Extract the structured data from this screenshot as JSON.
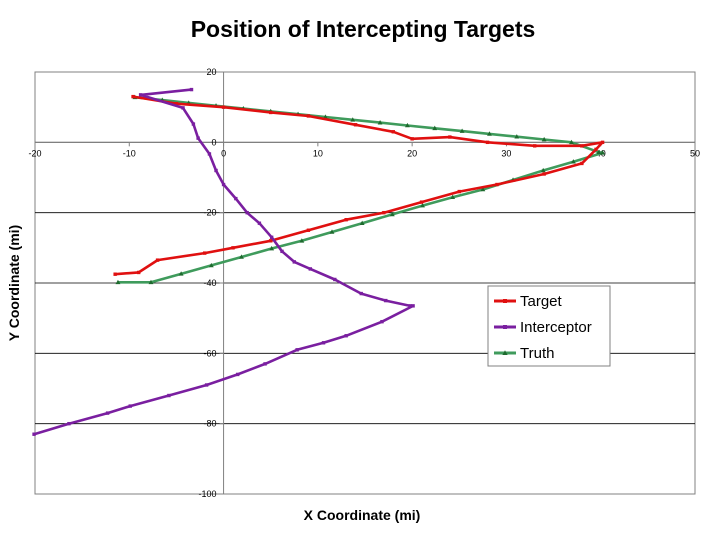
{
  "chart_data": {
    "type": "line",
    "title": "Position of Intercepting Targets",
    "xlabel": "X Coordinate (mi)",
    "ylabel": "Y Coordinate (mi)",
    "xlim": [
      -20,
      50
    ],
    "ylim": [
      -100,
      20
    ],
    "xticks": [
      -20,
      -10,
      0,
      10,
      20,
      30,
      40,
      50
    ],
    "yticks": [
      20,
      0,
      -20,
      -40,
      -60,
      -80,
      -100
    ],
    "xtick_labels": [
      "-20",
      "-10",
      "0",
      "10",
      "20",
      "30",
      "40",
      "50"
    ],
    "ytick_labels": [
      "20",
      "0",
      "-20",
      "-40",
      "-60",
      "-80",
      "-100"
    ],
    "grid": "horizontal",
    "legend_position": "lower-right",
    "series": [
      {
        "name": "Target",
        "color": "#e01010",
        "marker": "small-square",
        "x": [
          -9.6,
          -5,
          0,
          5,
          9,
          14,
          18,
          20,
          24,
          28,
          33,
          38,
          40.2,
          39.5,
          38,
          34,
          29,
          25,
          21,
          17,
          13,
          9,
          5,
          1,
          -2,
          -7,
          -9,
          -11.5
        ],
        "y": [
          13,
          11,
          10,
          8.5,
          7.5,
          5,
          3,
          1,
          1.5,
          0,
          -1,
          -1,
          0,
          -2,
          -6,
          -9,
          -12,
          -14,
          -17,
          -20,
          -22,
          -25,
          -28,
          -30,
          -31.5,
          -33.5,
          -37,
          -37.5
        ]
      },
      {
        "name": "Interceptor",
        "color": "#7a1fa0",
        "marker": "small-square",
        "x": [
          -3.4,
          -8.8,
          -4.3,
          -3.2,
          -2.7,
          -1.5,
          -0.8,
          0,
          1.3,
          2.5,
          3.8,
          5.1,
          6.2,
          7.5,
          9.2,
          11.8,
          14.6,
          17.2,
          19.8,
          20.1,
          16.8,
          13,
          10.6,
          7.8,
          4.4,
          1.5,
          -1.8,
          -5.8,
          -9.9,
          -12.3,
          -16.4,
          -20.1
        ],
        "y": [
          15,
          13.5,
          9.8,
          5.2,
          1.2,
          -3.3,
          -8,
          -12,
          -16,
          -20,
          -23,
          -27,
          -31,
          -34,
          -36,
          -39,
          -43,
          -45,
          -46.5,
          -46.5,
          -51,
          -55,
          -57,
          -59,
          -63,
          -66,
          -69,
          -72,
          -75,
          -77,
          -80,
          -83
        ]
      },
      {
        "name": "Truth",
        "color": "#3f9b5c",
        "marker": "small-triangle",
        "x": [
          -9.4,
          -6.5,
          -3.7,
          -0.8,
          2.1,
          5,
          7.9,
          10.8,
          13.7,
          16.6,
          19.5,
          22.4,
          25.3,
          28.2,
          31.1,
          34,
          36.9,
          39.8,
          40.2,
          37.1,
          33.9,
          30.7,
          27.5,
          24.3,
          21.1,
          17.9,
          14.7,
          11.5,
          8.3,
          5.1,
          1.9,
          -1.3,
          -4.5,
          -7.7,
          -11.2
        ],
        "y": [
          12.8,
          12,
          11.2,
          10.4,
          9.6,
          8.8,
          8,
          7.2,
          6.4,
          5.6,
          4.8,
          4,
          3.2,
          2.4,
          1.6,
          0.8,
          0,
          -2.8,
          -3,
          -5.5,
          -8,
          -10.7,
          -13.4,
          -15.6,
          -18,
          -20.5,
          -23,
          -25.5,
          -28,
          -30.2,
          -32.6,
          -35,
          -37.4,
          -39.8,
          -39.8
        ]
      }
    ]
  }
}
